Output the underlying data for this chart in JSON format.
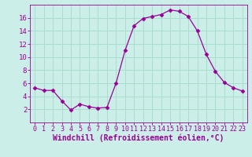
{
  "x": [
    0,
    1,
    2,
    3,
    4,
    5,
    6,
    7,
    8,
    9,
    10,
    11,
    12,
    13,
    14,
    15,
    16,
    17,
    18,
    19,
    20,
    21,
    22,
    23
  ],
  "y": [
    5.3,
    4.9,
    4.9,
    3.3,
    1.9,
    2.8,
    2.4,
    2.2,
    2.3,
    6.0,
    11.0,
    14.8,
    15.9,
    16.2,
    16.5,
    17.2,
    17.0,
    16.2,
    14.0,
    10.4,
    7.8,
    6.1,
    5.3,
    4.8
  ],
  "line_color": "#990099",
  "marker": "D",
  "marker_size": 2.5,
  "bg_color": "#cceee8",
  "grid_color": "#aaddcc",
  "xlabel": "Windchill (Refroidissement éolien,°C)",
  "xlabel_color": "#990099",
  "tick_color": "#990099",
  "ylim": [
    0,
    18
  ],
  "xlim": [
    -0.5,
    23.5
  ],
  "yticks": [
    2,
    4,
    6,
    8,
    10,
    12,
    14,
    16
  ],
  "xticks": [
    0,
    1,
    2,
    3,
    4,
    5,
    6,
    7,
    8,
    9,
    10,
    11,
    12,
    13,
    14,
    15,
    16,
    17,
    18,
    19,
    20,
    21,
    22,
    23
  ],
  "tick_fontsize": 6.0,
  "xlabel_fontsize": 7.0
}
